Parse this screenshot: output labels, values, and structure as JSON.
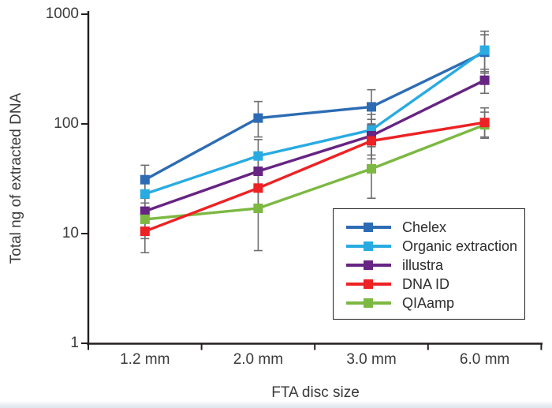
{
  "page": {
    "background": "#ffffff"
  },
  "chart_data": {
    "type": "line",
    "title": "",
    "xlabel": "FTA disc size",
    "ylabel": "Total ng of extracted DNA",
    "categories": [
      "1.2 mm",
      "2.0 mm",
      "3.0 mm",
      "6.0 mm"
    ],
    "y_scale": "log10",
    "ylim": [
      1,
      1000
    ],
    "y_ticks": [
      "1000",
      "100",
      "10",
      "1"
    ],
    "grid": false,
    "marker": "square",
    "legend_position": "inside-bottom-right-boxed",
    "axis_color": "#231f20",
    "text_color": "#3a3a3c",
    "error_bar_color": "#6d6e71",
    "series": [
      {
        "name": "Chelex",
        "color": "#2d6cb4",
        "values": [
          31,
          113,
          143,
          450
        ],
        "err_lo": [
          23,
          76,
          100,
          290
        ],
        "err_hi": [
          42,
          160,
          205,
          700
        ]
      },
      {
        "name": "Organic extraction",
        "color": "#29abe2",
        "values": [
          23,
          51,
          88,
          470
        ],
        "err_lo": [
          16,
          34,
          62,
          300
        ],
        "err_hi": [
          30,
          72,
          122,
          650
        ]
      },
      {
        "name": "illustra",
        "color": "#662483",
        "values": [
          16,
          37,
          78,
          250
        ],
        "err_lo": [
          11,
          26,
          52,
          190
        ],
        "err_hi": [
          21,
          50,
          110,
          315
        ]
      },
      {
        "name": "DNA ID",
        "color": "#ed2224",
        "values": [
          10.5,
          26,
          70,
          103
        ],
        "err_lo": [
          6.7,
          18,
          48,
          76
        ],
        "err_hi": [
          15,
          36,
          98,
          140
        ]
      },
      {
        "name": "QIAamp",
        "color": "#7cb842",
        "values": [
          13.5,
          17,
          39,
          98
        ],
        "err_lo": [
          9,
          7,
          21,
          74
        ],
        "err_hi": [
          19,
          36,
          62,
          128
        ]
      }
    ],
    "draw_order": [
      0,
      1,
      2,
      4,
      3
    ]
  }
}
